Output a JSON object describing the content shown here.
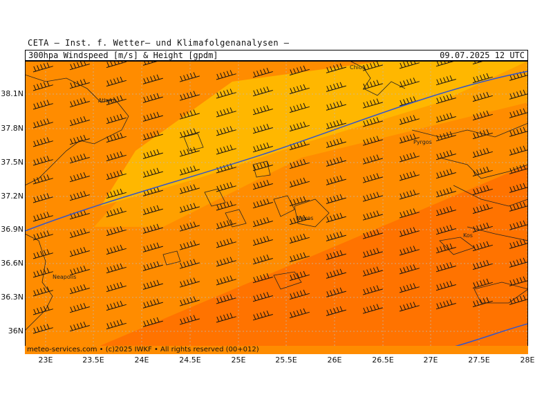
{
  "header": {
    "institute": "CETA — Inst. f. Wetter— und Klimafolgenanalysen —",
    "product": "300hpa Windspeed [m/s] & Height [gpdm]",
    "valid_time": "09.07.2025 12 UTC"
  },
  "axes": {
    "lat_ticks": [
      "38.1N",
      "37.8N",
      "37.5N",
      "37.2N",
      "36.9N",
      "36.6N",
      "36.3N",
      "36N"
    ],
    "lon_ticks": [
      "23E",
      "23.5E",
      "24E",
      "24.5E",
      "25E",
      "25.5E",
      "26E",
      "26.5E",
      "27E",
      "27.5E",
      "28E"
    ]
  },
  "places": [
    "Chios",
    "Athen",
    "Pyrgos",
    "Naxos",
    "Kos",
    "Neapolis"
  ],
  "footer": {
    "credit": "meteo-services.com • (c)2025 IWKF • All rights reserved (00+012)"
  },
  "colors": {
    "speed_low": "#ffb700",
    "speed_mid": "#ffa000",
    "speed_high": "#ff8c00",
    "speed_max": "#ff7300",
    "height_contour": "#3355cc"
  }
}
